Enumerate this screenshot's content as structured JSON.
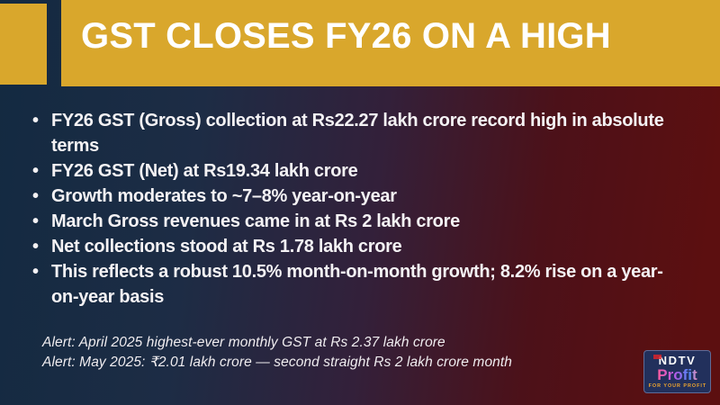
{
  "header": {
    "title": "GST CLOSES FY26 ON A HIGH"
  },
  "bullets": [
    "FY26 GST (Gross) collection at Rs22.27 lakh crore record high in absolute terms",
    "FY26 GST (Net) at Rs19.34 lakh crore",
    "Growth moderates to ~7–8% year-on-year",
    "March Gross revenues came in at Rs 2 lakh crore",
    "Net collections stood at Rs 1.78 lakh crore",
    "This reflects a robust 10.5% month-on-month growth; 8.2% rise on a year-on-year basis"
  ],
  "alerts": [
    "Alert: April 2025 highest-ever monthly GST at Rs 2.37 lakh crore",
    "Alert: May 2025: ₹2.01 lakh crore — second straight Rs 2 lakh crore month"
  ],
  "logo": {
    "brand": "NDTV",
    "product": "Profit",
    "tagline": "FOR YOUR PROFIT"
  },
  "colors": {
    "accent_yellow": "#D9A72C",
    "navy_left": "#132A41",
    "maroon_right": "#5C0F10",
    "logo_navy": "#22305C",
    "tagline_orange": "#F0A72E",
    "body_text": "#F4F2F4"
  }
}
